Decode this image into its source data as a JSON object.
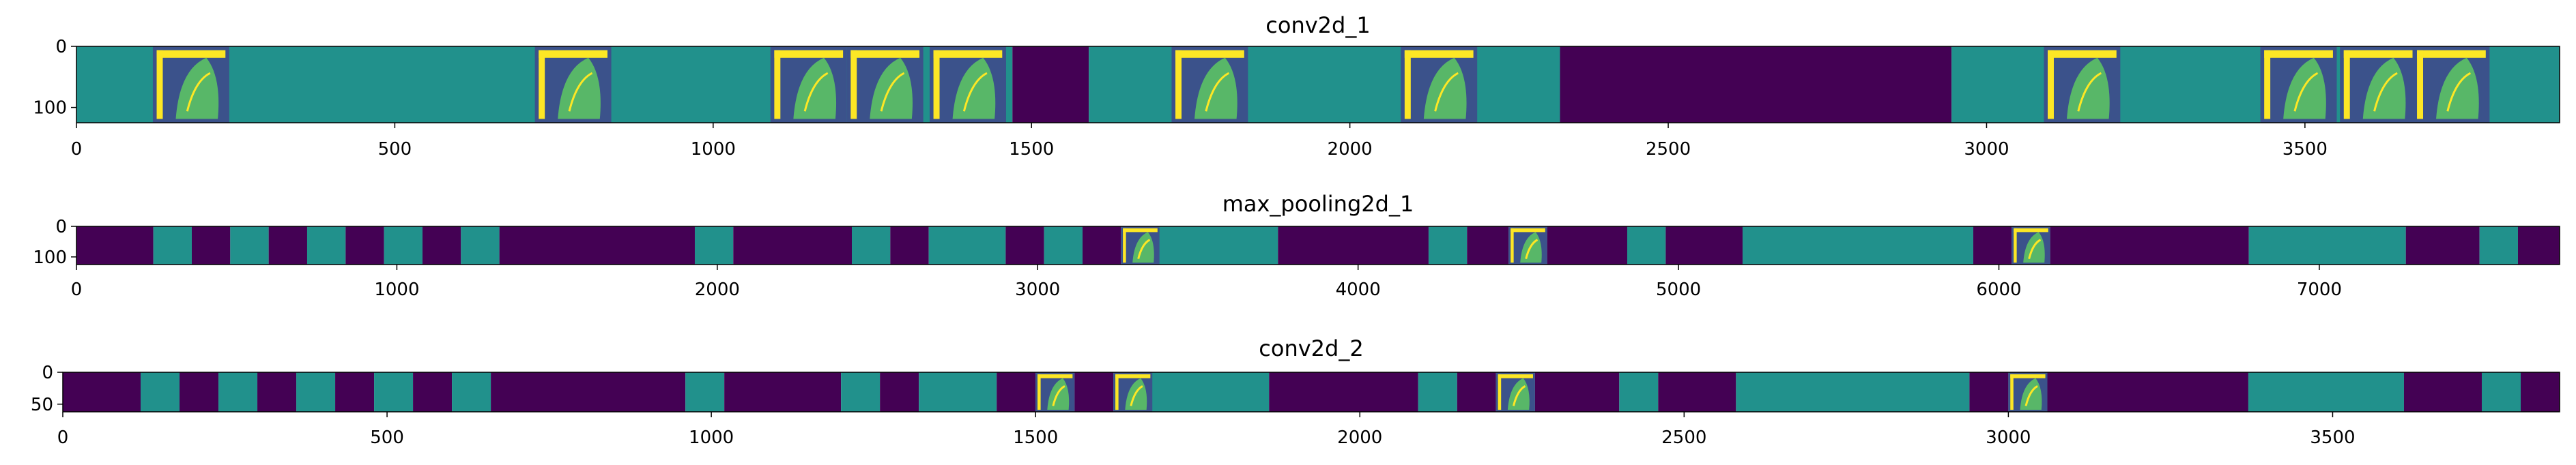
{
  "colors": {
    "background_feature": "#440154",
    "mid_feature": "#21918c",
    "detail_dark": "#3b528b",
    "detail_bright": "#fde725",
    "detail_green": "#5ec962",
    "axis": "#000000"
  },
  "chart_data": [
    {
      "type": "heatmap",
      "title": "conv2d_1",
      "xlim": [
        0,
        3900
      ],
      "ylim": [
        125,
        0
      ],
      "x_ticks": [
        0,
        500,
        1000,
        1500,
        2000,
        2500,
        3000,
        3500
      ],
      "x_tick_labels": [
        "0",
        "500",
        "1000",
        "1500",
        "2000",
        "2500",
        "3000",
        "3500"
      ],
      "y_ticks": [
        0,
        100
      ],
      "y_tick_labels": [
        "0",
        "100"
      ],
      "segments": [
        {
          "x0": 0,
          "x1": 1470,
          "level": "mid"
        },
        {
          "x0": 1470,
          "x1": 1590,
          "level": "dark"
        },
        {
          "x0": 1590,
          "x1": 2330,
          "level": "mid"
        },
        {
          "x0": 2330,
          "x1": 2945,
          "level": "dark"
        },
        {
          "x0": 2945,
          "x1": 3900,
          "level": "mid"
        }
      ],
      "image_tiles": [
        120,
        720,
        1090,
        1210,
        1340,
        1720,
        2080,
        3090,
        3430,
        3555,
        3670
      ]
    },
    {
      "type": "heatmap",
      "title": "max_pooling2d_1",
      "xlim": [
        0,
        7750
      ],
      "ylim": [
        125,
        0
      ],
      "x_ticks": [
        0,
        1000,
        2000,
        3000,
        4000,
        5000,
        6000,
        7000
      ],
      "x_tick_labels": [
        "0",
        "1000",
        "2000",
        "3000",
        "4000",
        "5000",
        "6000",
        "7000"
      ],
      "y_ticks": [
        0,
        100
      ],
      "y_tick_labels": [
        "0",
        "100"
      ],
      "segments": [
        {
          "x0": 0,
          "x1": 240,
          "level": "dark"
        },
        {
          "x0": 240,
          "x1": 360,
          "level": "mid"
        },
        {
          "x0": 360,
          "x1": 480,
          "level": "dark"
        },
        {
          "x0": 480,
          "x1": 600,
          "level": "mid"
        },
        {
          "x0": 600,
          "x1": 720,
          "level": "dark"
        },
        {
          "x0": 720,
          "x1": 840,
          "level": "mid"
        },
        {
          "x0": 840,
          "x1": 960,
          "level": "dark"
        },
        {
          "x0": 960,
          "x1": 1080,
          "level": "mid"
        },
        {
          "x0": 1080,
          "x1": 1200,
          "level": "dark"
        },
        {
          "x0": 1200,
          "x1": 1320,
          "level": "mid"
        },
        {
          "x0": 1320,
          "x1": 1930,
          "level": "dark"
        },
        {
          "x0": 1930,
          "x1": 2050,
          "level": "mid"
        },
        {
          "x0": 2050,
          "x1": 2420,
          "level": "dark"
        },
        {
          "x0": 2420,
          "x1": 2540,
          "level": "mid"
        },
        {
          "x0": 2540,
          "x1": 2660,
          "level": "dark"
        },
        {
          "x0": 2660,
          "x1": 2900,
          "level": "mid"
        },
        {
          "x0": 2900,
          "x1": 3020,
          "level": "dark"
        },
        {
          "x0": 3020,
          "x1": 3140,
          "level": "mid"
        },
        {
          "x0": 3140,
          "x1": 3260,
          "level": "dark"
        },
        {
          "x0": 3260,
          "x1": 3750,
          "level": "mid"
        },
        {
          "x0": 3750,
          "x1": 4220,
          "level": "dark"
        },
        {
          "x0": 4220,
          "x1": 4340,
          "level": "mid"
        },
        {
          "x0": 4340,
          "x1": 4470,
          "level": "dark"
        },
        {
          "x0": 4470,
          "x1": 4590,
          "level": "mid"
        },
        {
          "x0": 4590,
          "x1": 4840,
          "level": "dark"
        },
        {
          "x0": 4840,
          "x1": 4960,
          "level": "mid"
        },
        {
          "x0": 4960,
          "x1": 5200,
          "level": "dark"
        },
        {
          "x0": 5200,
          "x1": 5920,
          "level": "mid"
        },
        {
          "x0": 5920,
          "x1": 6040,
          "level": "dark"
        },
        {
          "x0": 6040,
          "x1": 6160,
          "level": "mid"
        },
        {
          "x0": 6160,
          "x1": 6780,
          "level": "dark"
        },
        {
          "x0": 6780,
          "x1": 7270,
          "level": "mid"
        },
        {
          "x0": 7270,
          "x1": 7500,
          "level": "dark"
        },
        {
          "x0": 7500,
          "x1": 7620,
          "level": "mid"
        },
        {
          "x0": 7620,
          "x1": 7750,
          "level": "dark"
        }
      ],
      "image_tiles": [
        3260,
        4470,
        6040
      ]
    },
    {
      "type": "heatmap",
      "title": "conv2d_2",
      "xlim": [
        0,
        3850
      ],
      "ylim": [
        62,
        0
      ],
      "x_ticks": [
        0,
        500,
        1000,
        1500,
        2000,
        2500,
        3000,
        3500
      ],
      "x_tick_labels": [
        "0",
        "500",
        "1000",
        "1500",
        "2000",
        "2500",
        "3000",
        "3500"
      ],
      "y_ticks": [
        0,
        50
      ],
      "y_tick_labels": [
        "0",
        "50"
      ],
      "segments": [
        {
          "x0": 0,
          "x1": 120,
          "level": "dark"
        },
        {
          "x0": 120,
          "x1": 180,
          "level": "mid"
        },
        {
          "x0": 180,
          "x1": 240,
          "level": "dark"
        },
        {
          "x0": 240,
          "x1": 300,
          "level": "mid"
        },
        {
          "x0": 300,
          "x1": 360,
          "level": "dark"
        },
        {
          "x0": 360,
          "x1": 420,
          "level": "mid"
        },
        {
          "x0": 420,
          "x1": 480,
          "level": "dark"
        },
        {
          "x0": 480,
          "x1": 540,
          "level": "mid"
        },
        {
          "x0": 540,
          "x1": 600,
          "level": "dark"
        },
        {
          "x0": 600,
          "x1": 660,
          "level": "mid"
        },
        {
          "x0": 660,
          "x1": 960,
          "level": "dark"
        },
        {
          "x0": 960,
          "x1": 1020,
          "level": "mid"
        },
        {
          "x0": 1020,
          "x1": 1200,
          "level": "dark"
        },
        {
          "x0": 1200,
          "x1": 1260,
          "level": "mid"
        },
        {
          "x0": 1260,
          "x1": 1320,
          "level": "dark"
        },
        {
          "x0": 1320,
          "x1": 1440,
          "level": "mid"
        },
        {
          "x0": 1440,
          "x1": 1500,
          "level": "dark"
        },
        {
          "x0": 1500,
          "x1": 1560,
          "level": "mid"
        },
        {
          "x0": 1560,
          "x1": 1620,
          "level": "dark"
        },
        {
          "x0": 1620,
          "x1": 1860,
          "level": "mid"
        },
        {
          "x0": 1860,
          "x1": 2090,
          "level": "dark"
        },
        {
          "x0": 2090,
          "x1": 2150,
          "level": "mid"
        },
        {
          "x0": 2150,
          "x1": 2210,
          "level": "dark"
        },
        {
          "x0": 2210,
          "x1": 2270,
          "level": "mid"
        },
        {
          "x0": 2270,
          "x1": 2400,
          "level": "dark"
        },
        {
          "x0": 2400,
          "x1": 2460,
          "level": "mid"
        },
        {
          "x0": 2460,
          "x1": 2580,
          "level": "dark"
        },
        {
          "x0": 2580,
          "x1": 2940,
          "level": "mid"
        },
        {
          "x0": 2940,
          "x1": 3000,
          "level": "dark"
        },
        {
          "x0": 3000,
          "x1": 3060,
          "level": "mid"
        },
        {
          "x0": 3060,
          "x1": 3370,
          "level": "dark"
        },
        {
          "x0": 3370,
          "x1": 3610,
          "level": "mid"
        },
        {
          "x0": 3610,
          "x1": 3730,
          "level": "dark"
        },
        {
          "x0": 3730,
          "x1": 3790,
          "level": "mid"
        },
        {
          "x0": 3790,
          "x1": 3850,
          "level": "dark"
        }
      ],
      "image_tiles": [
        1500,
        1620,
        2210,
        3000
      ]
    }
  ]
}
